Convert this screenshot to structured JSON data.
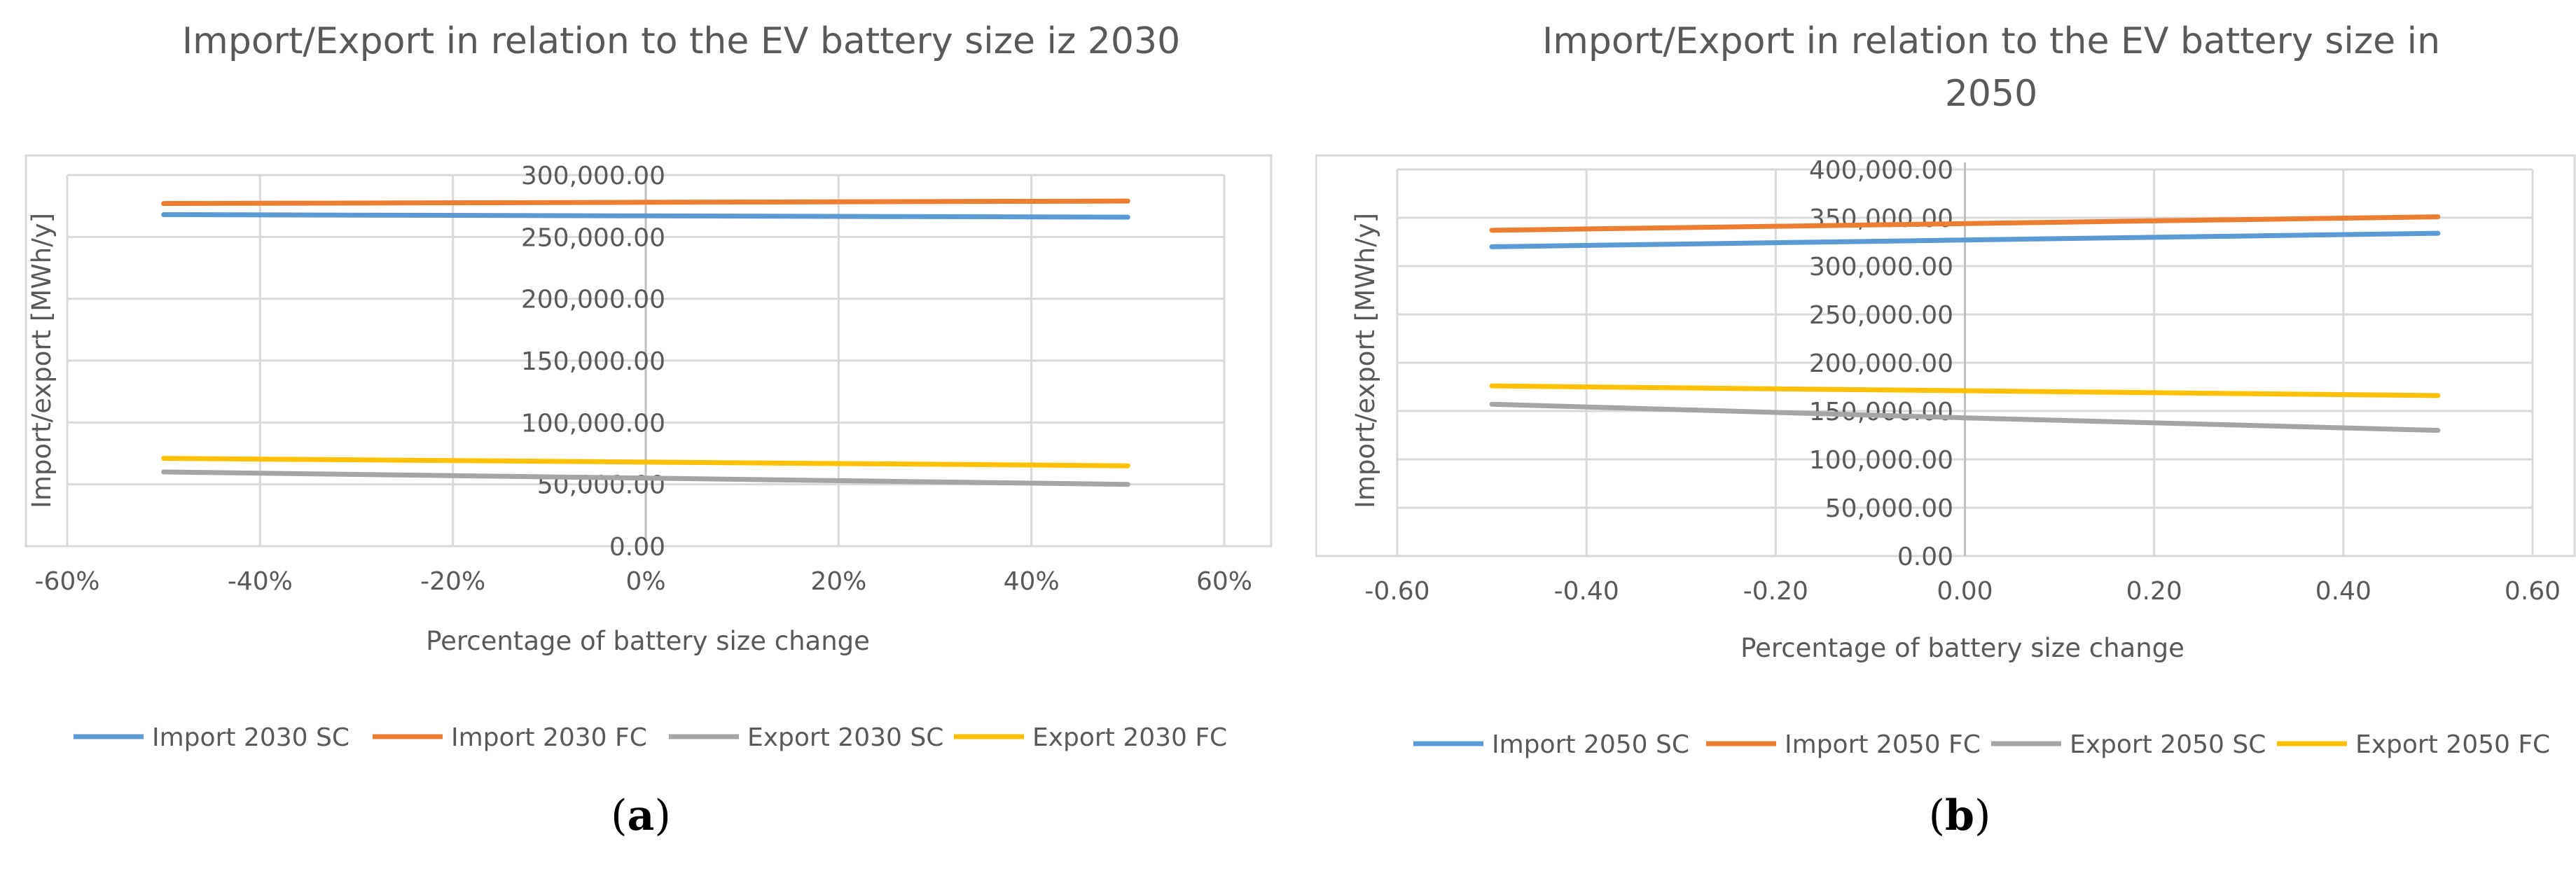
{
  "chart_data": [
    {
      "type": "line",
      "title": "Import/Export in relation to the EV battery size iz 2030",
      "xlabel": "Percentage of battery size change",
      "ylabel": "Import/export [MWh/y]",
      "xlim": [
        -0.6,
        0.6
      ],
      "ylim": [
        0,
        300000
      ],
      "x_ticks": [
        -0.6,
        -0.4,
        -0.2,
        0,
        0.2,
        0.4,
        0.6
      ],
      "x_tick_labels": [
        "-60%",
        "-40%",
        "-20%",
        "0%",
        "20%",
        "40%",
        "60%"
      ],
      "y_ticks": [
        0,
        50000,
        100000,
        150000,
        200000,
        250000,
        300000
      ],
      "y_tick_labels": [
        "0.00",
        "50,000.00",
        "100,000.00",
        "150,000.00",
        "200,000.00",
        "250,000.00",
        "300,000.00"
      ],
      "grid": true,
      "legend_position": "bottom",
      "x": [
        -0.5,
        -0.25,
        0,
        0.25,
        0.5
      ],
      "series": [
        {
          "name": "Import 2030 SC",
          "color": "#4472C4",
          "line_color": "#5B9BD5",
          "values": [
            268000,
            267500,
            267000,
            266500,
            266000
          ]
        },
        {
          "name": "Import 2030 FC",
          "color": "#ED7D31",
          "values": [
            277000,
            277500,
            278000,
            278500,
            279000
          ]
        },
        {
          "name": "Export 2030 SC",
          "color": "#A5A5A5",
          "values": [
            60000,
            57500,
            55000,
            52500,
            50000
          ]
        },
        {
          "name": "Export 2030 FC",
          "color": "#FFC000",
          "values": [
            71000,
            69500,
            68000,
            66500,
            65000
          ]
        }
      ],
      "sub_label": "a"
    },
    {
      "type": "line",
      "title": "Import/Export in relation to the EV battery size in 2050",
      "xlabel": "Percentage of battery size change",
      "ylabel": "Import/export [MWh/y]",
      "xlim": [
        -0.6,
        0.6
      ],
      "ylim": [
        0,
        400000
      ],
      "x_ticks": [
        -0.6,
        -0.4,
        -0.2,
        0,
        0.2,
        0.4,
        0.6
      ],
      "x_tick_labels": [
        "-0.60",
        "-0.40",
        "-0.20",
        "0.00",
        "0.20",
        "0.40",
        "0.60"
      ],
      "y_ticks": [
        0,
        50000,
        100000,
        150000,
        200000,
        250000,
        300000,
        350000,
        400000
      ],
      "y_tick_labels": [
        "0.00",
        "50,000.00",
        "100,000.00",
        "150,000.00",
        "200,000.00",
        "250,000.00",
        "300,000.00",
        "350,000.00",
        "400,000.00"
      ],
      "grid": true,
      "legend_position": "bottom",
      "x": [
        -0.5,
        -0.25,
        0,
        0.25,
        0.5
      ],
      "series": [
        {
          "name": "Import 2050 SC",
          "color": "#5B9BD5",
          "values": [
            320000,
            323500,
            327000,
            330500,
            334000
          ]
        },
        {
          "name": "Import 2050 FC",
          "color": "#ED7D31",
          "values": [
            337000,
            340500,
            344000,
            347500,
            351000
          ]
        },
        {
          "name": "Export 2050 SC",
          "color": "#A5A5A5",
          "values": [
            157000,
            150000,
            143000,
            136500,
            130000
          ]
        },
        {
          "name": "Export 2050 FC",
          "color": "#FFC000",
          "values": [
            176000,
            173500,
            171000,
            168500,
            166000
          ]
        }
      ],
      "sub_label": "b"
    }
  ]
}
